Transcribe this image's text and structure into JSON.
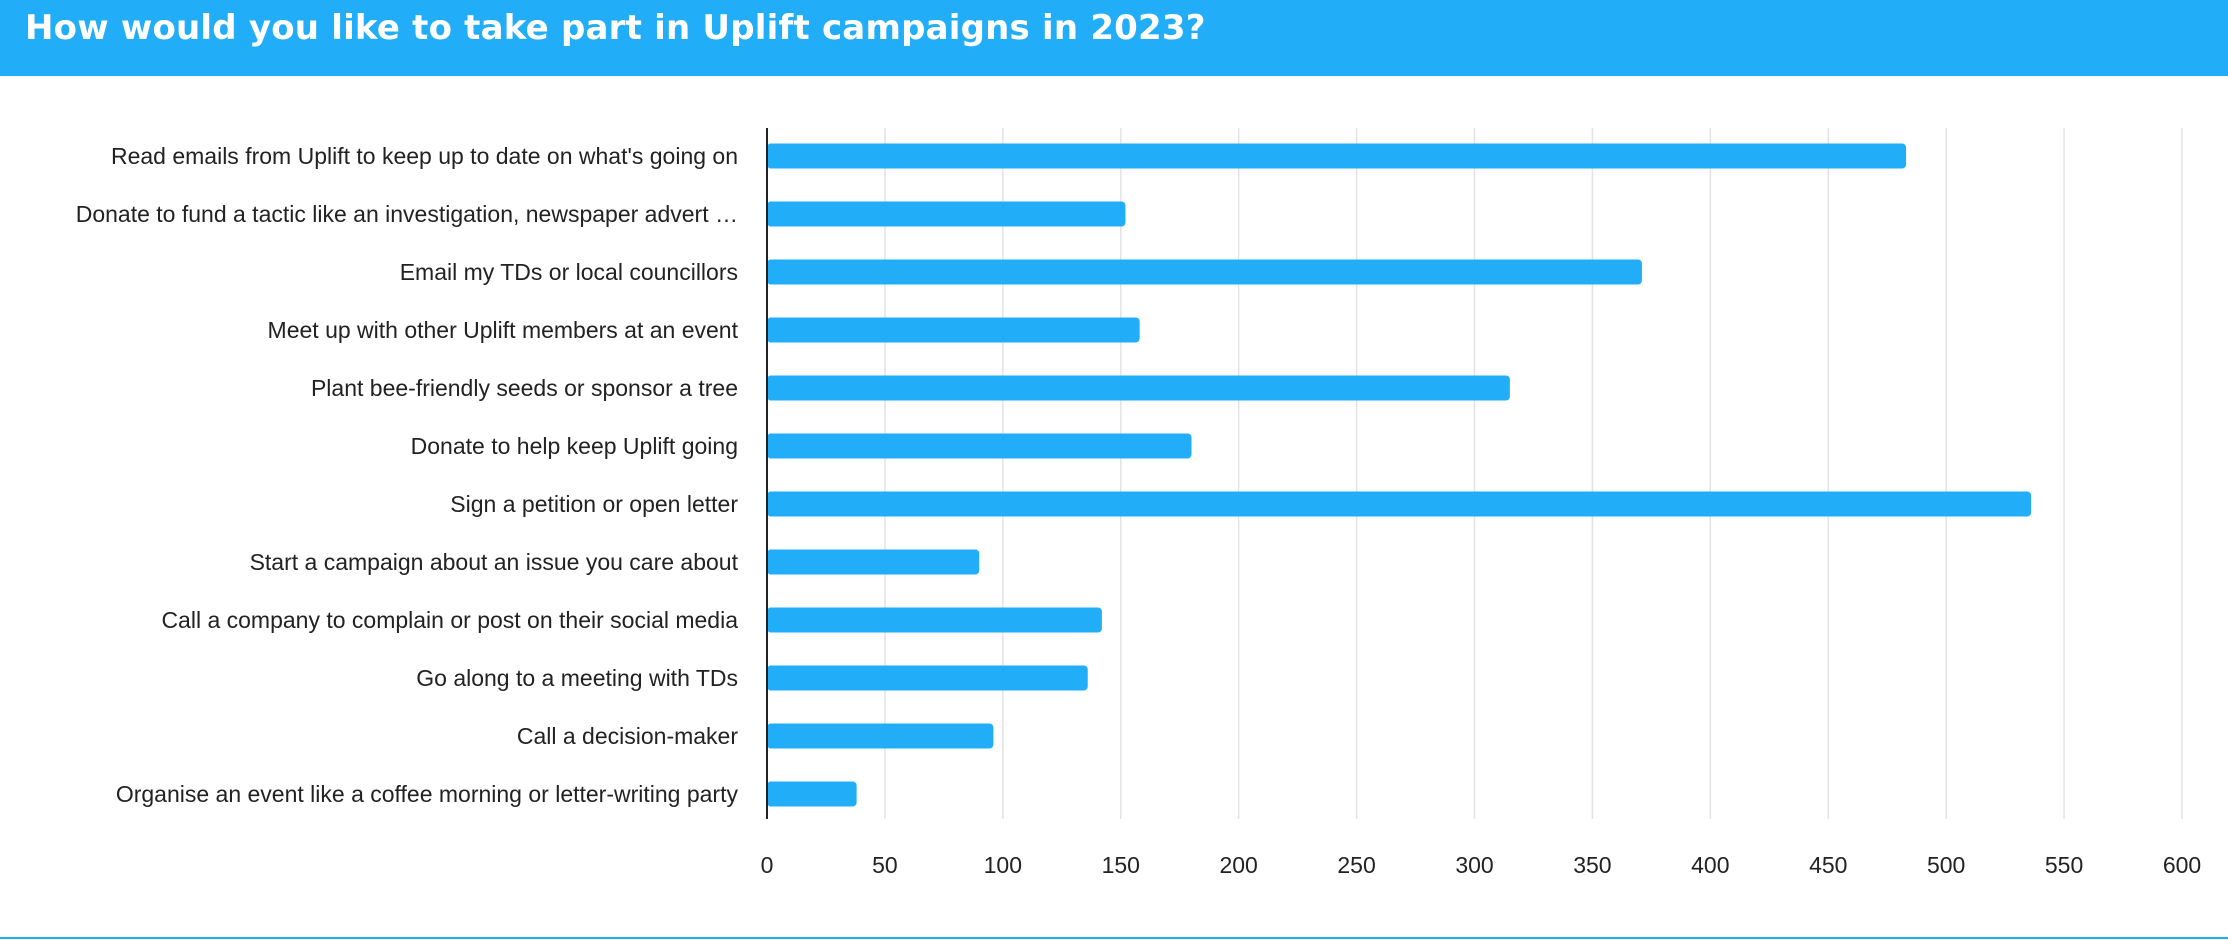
{
  "header": {
    "title": "How would you like to take part in Uplift campaigns in 2023?"
  },
  "colors": {
    "accent": "#22adf9",
    "bar": "#22adf9",
    "grid": "#e3e3e3",
    "axis": "#222222",
    "text": "#222222"
  },
  "chart_data": {
    "type": "bar",
    "orientation": "horizontal",
    "title": "How would you like to take part in Uplift campaigns in 2023?",
    "xlabel": "",
    "ylabel": "",
    "xlim": [
      0,
      600
    ],
    "ticks": [
      0,
      50,
      100,
      150,
      200,
      250,
      300,
      350,
      400,
      450,
      500,
      550,
      600
    ],
    "grid": true,
    "legend": "none",
    "categories": [
      "Read emails from Uplift to keep up to date on what's going on",
      "Donate to fund a tactic like an investigation, newspaper advert …",
      "Email my TDs or local councillors",
      "Meet up with other Uplift members at an event",
      "Plant bee-friendly seeds or sponsor a tree",
      "Donate to help keep Uplift going",
      "Sign a petition or open letter",
      "Start a campaign about an issue you care about",
      "Call a company to complain or post on their social media",
      "Go along to a meeting with TDs",
      "Call a decision-maker",
      "Organise an event like a coffee morning or letter-writing party"
    ],
    "values": [
      483,
      152,
      371,
      158,
      315,
      180,
      536,
      90,
      142,
      136,
      96,
      38
    ]
  }
}
